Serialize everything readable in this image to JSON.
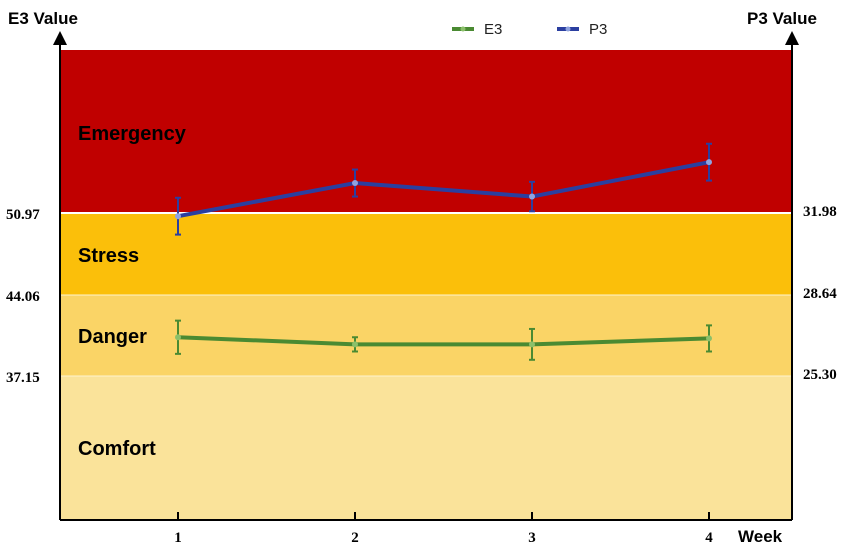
{
  "chart_data": {
    "type": "line",
    "left_axis_title": "E3 Value",
    "right_axis_title": "P3 Value",
    "x_axis_title": "Week",
    "categories": [
      "1",
      "2",
      "3",
      "4"
    ],
    "left_ticks": [
      "50.97",
      "44.06",
      "37.15"
    ],
    "right_ticks": [
      "31.98",
      "28.64",
      "25.30"
    ],
    "zones": [
      {
        "label": "Emergency",
        "color": "#c00000"
      },
      {
        "label": "Stress",
        "color": "#fbbf0a"
      },
      {
        "label": "Danger",
        "color": "#fad466"
      },
      {
        "label": "Comfort",
        "color": "#fae39a"
      }
    ],
    "series": [
      {
        "name": "E3",
        "axis": "left",
        "color": "#4a8a32",
        "values": [
          40.5,
          39.9,
          39.9,
          40.4
        ],
        "error": [
          1.4,
          0.6,
          1.3,
          1.1
        ]
      },
      {
        "name": "P3",
        "axis": "right",
        "color": "#2b3fa0",
        "values": [
          31.85,
          33.2,
          32.65,
          34.05
        ],
        "error": [
          0.75,
          0.55,
          0.6,
          0.75
        ]
      }
    ],
    "legend_position": "top-center",
    "grid": false
  }
}
